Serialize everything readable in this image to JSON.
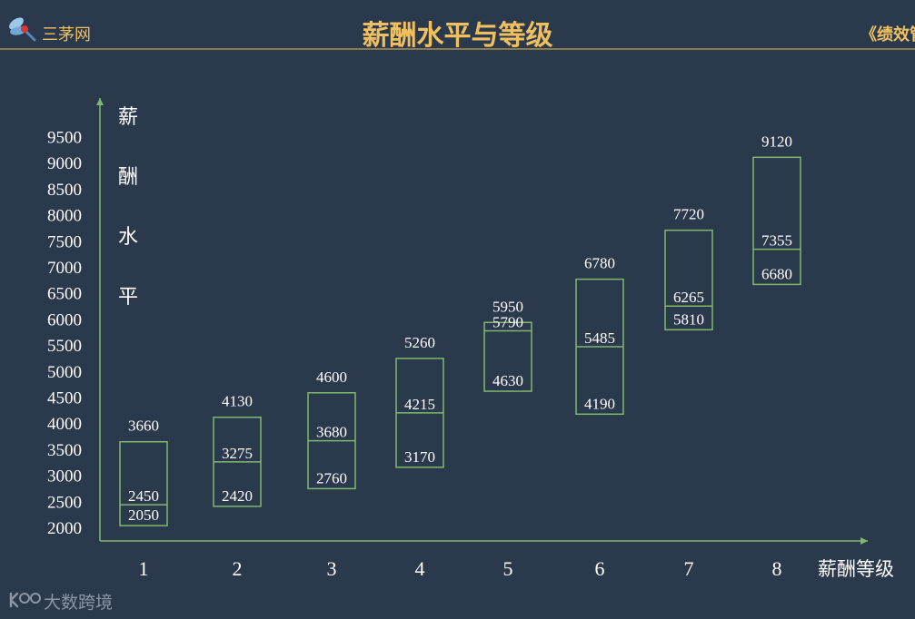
{
  "header": {
    "brand": "三茅网",
    "title": "薪酬水平与等级",
    "subtitle": "《绩效管理与"
  },
  "watermark": {
    "text": "大数跨境"
  },
  "colors": {
    "background": "#2b394c",
    "accent": "#f0c060",
    "box_stroke": "#7fb86e",
    "axis": "#7fb86e",
    "text": "#ffffff"
  },
  "chart_data": {
    "type": "box-range",
    "ylabel": "薪酬水平",
    "xlabel": "薪酬等级",
    "y_ticks": [
      2000,
      2500,
      3000,
      3500,
      4000,
      4500,
      5000,
      5500,
      6000,
      6500,
      7000,
      7500,
      8000,
      8500,
      9000,
      9500
    ],
    "categories": [
      "1",
      "2",
      "3",
      "4",
      "5",
      "6",
      "7",
      "8"
    ],
    "ranges": [
      {
        "grade": "1",
        "max": 3660,
        "mid": 2450,
        "min": 2050
      },
      {
        "grade": "2",
        "max": 4130,
        "mid": 3275,
        "min": 2420
      },
      {
        "grade": "3",
        "max": 4600,
        "mid": 3680,
        "min": 2760
      },
      {
        "grade": "4",
        "max": 5260,
        "mid": 4215,
        "min": 3170
      },
      {
        "grade": "5",
        "max": 5950,
        "mid": 5790,
        "min": 4630
      },
      {
        "grade": "6",
        "max": 6780,
        "mid": 5485,
        "min": 4190
      },
      {
        "grade": "7",
        "max": 7720,
        "mid": 6265,
        "min": 5810
      },
      {
        "grade": "8",
        "max": 9120,
        "mid": 7355,
        "min": 6680
      }
    ]
  }
}
